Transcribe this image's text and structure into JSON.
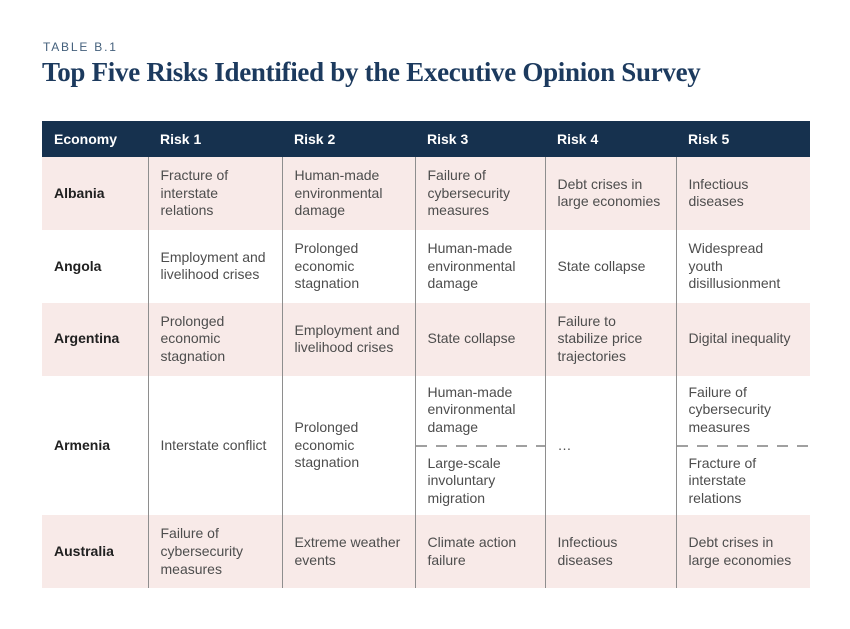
{
  "label": "TABLE B.1",
  "title": "Top Five Risks Identified by the Executive Opinion Survey",
  "colors": {
    "header_bg": "#16314e",
    "title_text": "#1c3a5e",
    "label_text": "#44607c",
    "row_pink": "#f8eae8",
    "row_white": "#ffffff",
    "divider": "#8e8e8e",
    "cell_text": "#4d4d4d",
    "economy_text": "#202020",
    "dash": "#a0a0a0"
  },
  "columns": [
    "Economy",
    "Risk 1",
    "Risk 2",
    "Risk 3",
    "Risk 4",
    "Risk 5"
  ],
  "rows": [
    {
      "economy": "Albania",
      "risks": [
        "Fracture of interstate relations",
        "Human-made environmental damage",
        "Failure of cybersecurity measures",
        "Debt crises in large economies",
        "Infectious diseases"
      ]
    },
    {
      "economy": "Angola",
      "risks": [
        "Employment and livelihood crises",
        "Prolonged economic stagnation",
        "Human-made environmental damage",
        "State collapse",
        "Widespread youth disillusionment"
      ]
    },
    {
      "economy": "Argentina",
      "risks": [
        "Prolonged economic stagnation",
        "Employment and livelihood crises",
        "State collapse",
        "Failure to stabilize price trajectories",
        "Digital inequality"
      ]
    },
    {
      "economy": "Armenia",
      "risks": [
        "Interstate conflict",
        "Prolonged economic stagnation",
        {
          "tie": [
            "Human-made environmental damage",
            "Large-scale involuntary migration"
          ]
        },
        "…",
        {
          "tie": [
            "Failure of cybersecurity measures",
            "Fracture of interstate relations"
          ]
        }
      ]
    },
    {
      "economy": "Australia",
      "risks": [
        "Failure of cybersecurity measures",
        "Extreme weather events",
        "Climate action failure",
        "Infectious diseases",
        "Debt crises in large economies"
      ]
    }
  ]
}
